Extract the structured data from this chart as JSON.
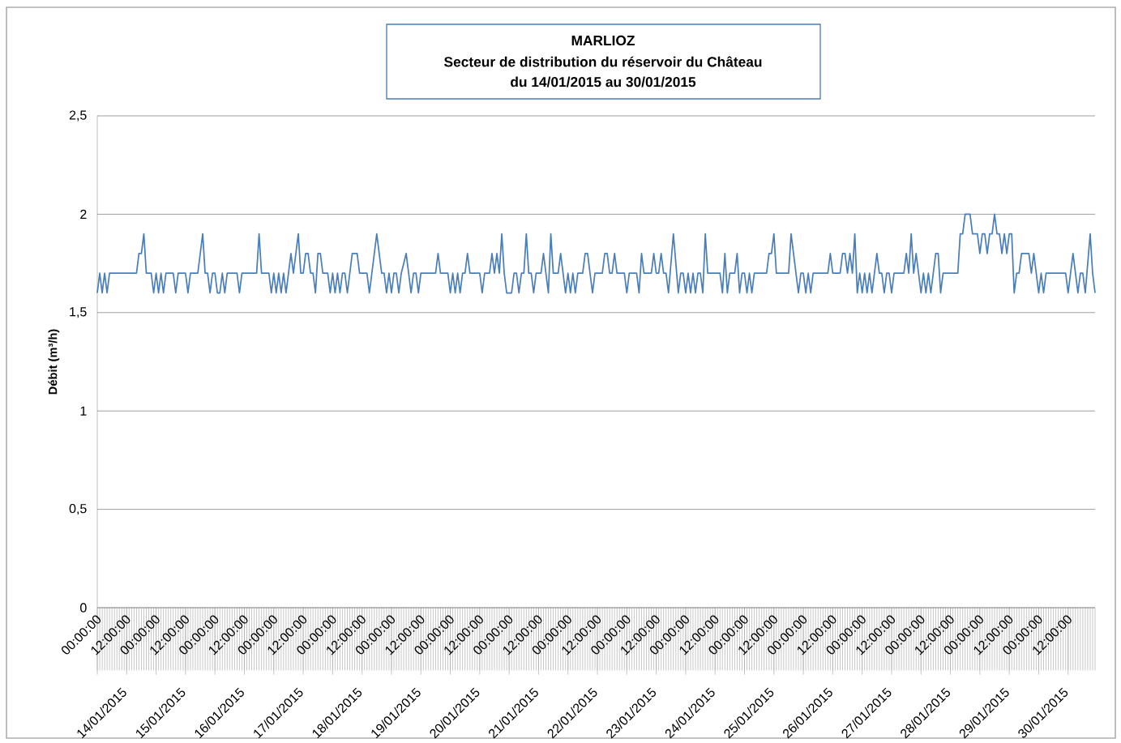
{
  "chart_data": {
    "type": "line",
    "title": "MARLIOZ",
    "subtitle": "Secteur de distribution du réservoir du Château",
    "ylabel": "Débit (m³/h)",
    "annotations": [
      "du 14/01/2015 au   30/01/2015",
      "14/01/2015",
      "15/01/2015",
      "16/01/2015",
      "17/01/2015",
      "18/01/2015",
      "19/01/2015",
      "20/01/2015",
      "21/01/2015",
      "22/01/2015",
      "23/01/2015",
      "24/01/2015",
      "25/01/2015",
      "26/01/2015",
      "27/01/2015",
      "28/01/2015",
      "29/01/2015",
      "30/01/2015"
    ],
    "xlim": [
      "2015-01-14T00:00",
      "2015-01-30T23:00"
    ],
    "ylim": [
      0,
      2.5
    ],
    "xticks": [
      {
        "value": "2015-01-14T00:00",
        "label": "00:00:00"
      },
      {
        "value": "2015-01-14T12:00",
        "label": "12:00:00"
      },
      {
        "value": "2015-01-15T00:00",
        "label": "00:00:00"
      },
      {
        "value": "2015-01-15T12:00",
        "label": "12:00:00"
      },
      {
        "value": "2015-01-16T00:00",
        "label": "00:00:00"
      },
      {
        "value": "2015-01-16T12:00",
        "label": "12:00:00"
      },
      {
        "value": "2015-01-17T00:00",
        "label": "00:00:00"
      },
      {
        "value": "2015-01-17T12:00",
        "label": "12:00:00"
      },
      {
        "value": "2015-01-18T00:00",
        "label": "00:00:00"
      },
      {
        "value": "2015-01-18T12:00",
        "label": "12:00:00"
      },
      {
        "value": "2015-01-19T00:00",
        "label": "00:00:00"
      },
      {
        "value": "2015-01-19T12:00",
        "label": "12:00:00"
      },
      {
        "value": "2015-01-20T00:00",
        "label": "00:00:00"
      },
      {
        "value": "2015-01-20T12:00",
        "label": "12:00:00"
      },
      {
        "value": "2015-01-21T00:00",
        "label": "00:00:00"
      },
      {
        "value": "2015-01-21T12:00",
        "label": "12:00:00"
      },
      {
        "value": "2015-01-22T00:00",
        "label": "00:00:00"
      },
      {
        "value": "2015-01-22T12:00",
        "label": "12:00:00"
      },
      {
        "value": "2015-01-23T00:00",
        "label": "00:00:00"
      },
      {
        "value": "2015-01-23T12:00",
        "label": "12:00:00"
      },
      {
        "value": "2015-01-24T00:00",
        "label": "00:00:00"
      },
      {
        "value": "2015-01-24T12:00",
        "label": "12:00:00"
      },
      {
        "value": "2015-01-25T00:00",
        "label": "00:00:00"
      },
      {
        "value": "2015-01-25T12:00",
        "label": "12:00:00"
      },
      {
        "value": "2015-01-26T00:00",
        "label": "00:00:00"
      },
      {
        "value": "2015-01-26T12:00",
        "label": "12:00:00"
      },
      {
        "value": "2015-01-27T00:00",
        "label": "00:00:00"
      },
      {
        "value": "2015-01-27T12:00",
        "label": "12:00:00"
      },
      {
        "value": "2015-01-28T00:00",
        "label": "00:00:00"
      },
      {
        "value": "2015-01-28T12:00",
        "label": "12:00:00"
      },
      {
        "value": "2015-01-29T00:00",
        "label": "00:00:00"
      },
      {
        "value": "2015-01-29T12:00",
        "label": "12:00:00"
      },
      {
        "value": "2015-01-30T00:00",
        "label": "00:00:00"
      },
      {
        "value": "2015-01-30T12:00",
        "label": "12:00:00"
      }
    ],
    "yticks": [
      {
        "value": 0,
        "label": "0"
      },
      {
        "value": 0.5,
        "label": "0,5"
      },
      {
        "value": 1,
        "label": "1"
      },
      {
        "value": 1.5,
        "label": "1,5"
      },
      {
        "value": 2,
        "label": "2"
      },
      {
        "value": 2.5,
        "label": "2,5"
      }
    ],
    "grid": "y",
    "marker": "none",
    "line_style": "solid",
    "series": [
      {
        "color": "#4a7ebb",
        "x": [
          "2015-01-14T00:00",
          "2015-01-14T01:00",
          "2015-01-14T02:00",
          "2015-01-14T03:00",
          "2015-01-14T04:00",
          "2015-01-14T05:00",
          "2015-01-14T16:00",
          "2015-01-14T17:00",
          "2015-01-14T18:00",
          "2015-01-14T19:00",
          "2015-01-14T20:00",
          "2015-01-14T22:00",
          "2015-01-14T23:00",
          "2015-01-15T00:00",
          "2015-01-15T01:00",
          "2015-01-15T02:00",
          "2015-01-15T03:00",
          "2015-01-15T04:00",
          "2015-01-15T07:00",
          "2015-01-15T08:00",
          "2015-01-15T09:00",
          "2015-01-15T12:00",
          "2015-01-15T13:00",
          "2015-01-15T14:00",
          "2015-01-15T17:00",
          "2015-01-15T19:00",
          "2015-01-15T20:00",
          "2015-01-15T21:00",
          "2015-01-15T22:00",
          "2015-01-15T23:00",
          "2015-01-16T00:00",
          "2015-01-16T01:00",
          "2015-01-16T02:00",
          "2015-01-16T03:00",
          "2015-01-16T04:00",
          "2015-01-16T05:00",
          "2015-01-16T09:00",
          "2015-01-16T10:00",
          "2015-01-16T11:00",
          "2015-01-16T17:00",
          "2015-01-16T18:00",
          "2015-01-16T19:00",
          "2015-01-16T22:00",
          "2015-01-16T23:00",
          "2015-01-17T00:00",
          "2015-01-17T01:00",
          "2015-01-17T02:00",
          "2015-01-17T03:00",
          "2015-01-17T04:00",
          "2015-01-17T05:00",
          "2015-01-17T06:00",
          "2015-01-17T07:00",
          "2015-01-17T08:00",
          "2015-01-17T10:00",
          "2015-01-17T11:00",
          "2015-01-17T12:00",
          "2015-01-17T13:00",
          "2015-01-17T14:00",
          "2015-01-17T15:00",
          "2015-01-17T16:00",
          "2015-01-17T17:00",
          "2015-01-17T18:00",
          "2015-01-17T19:00",
          "2015-01-17T20:00",
          "2015-01-17T22:00",
          "2015-01-17T23:00",
          "2015-01-18T00:00",
          "2015-01-18T01:00",
          "2015-01-18T02:00",
          "2015-01-18T03:00",
          "2015-01-18T04:00",
          "2015-01-18T05:00",
          "2015-01-18T06:00",
          "2015-01-18T07:00",
          "2015-01-18T08:00",
          "2015-01-18T10:00",
          "2015-01-18T11:00",
          "2015-01-18T14:00",
          "2015-01-18T15:00",
          "2015-01-18T18:00",
          "2015-01-18T20:00",
          "2015-01-18T21:00",
          "2015-01-18T22:00",
          "2015-01-18T23:00",
          "2015-01-19T00:00",
          "2015-01-19T01:00",
          "2015-01-19T02:00",
          "2015-01-19T03:00",
          "2015-01-19T04:00",
          "2015-01-19T06:00",
          "2015-01-19T08:00",
          "2015-01-19T09:00",
          "2015-01-19T10:00",
          "2015-01-19T11:00",
          "2015-01-19T12:00",
          "2015-01-19T18:00",
          "2015-01-19T19:00",
          "2015-01-19T20:00",
          "2015-01-19T23:00",
          "2015-01-20T00:00",
          "2015-01-20T01:00",
          "2015-01-20T02:00",
          "2015-01-20T03:00",
          "2015-01-20T04:00",
          "2015-01-20T05:00",
          "2015-01-20T06:00",
          "2015-01-20T07:00",
          "2015-01-20T08:00",
          "2015-01-20T12:00",
          "2015-01-20T13:00",
          "2015-01-20T14:00",
          "2015-01-20T16:00",
          "2015-01-20T17:00",
          "2015-01-20T18:00",
          "2015-01-20T19:00",
          "2015-01-20T20:00",
          "2015-01-20T21:00",
          "2015-01-20T22:00",
          "2015-01-20T23:00",
          "2015-01-21T01:00",
          "2015-01-21T02:00",
          "2015-01-21T03:00",
          "2015-01-21T04:00",
          "2015-01-21T05:00",
          "2015-01-21T06:00",
          "2015-01-21T07:00",
          "2015-01-21T08:00",
          "2015-01-21T09:00",
          "2015-01-21T10:00",
          "2015-01-21T11:00",
          "2015-01-21T13:00",
          "2015-01-21T14:00",
          "2015-01-21T15:00",
          "2015-01-21T16:00",
          "2015-01-21T17:00",
          "2015-01-21T18:00",
          "2015-01-21T20:00",
          "2015-01-21T21:00",
          "2015-01-21T22:00",
          "2015-01-21T23:00",
          "2015-01-22T00:00",
          "2015-01-22T01:00",
          "2015-01-22T02:00",
          "2015-01-22T03:00",
          "2015-01-22T04:00",
          "2015-01-22T06:00",
          "2015-01-22T07:00",
          "2015-01-22T08:00",
          "2015-01-22T09:00",
          "2015-01-22T10:00",
          "2015-01-22T11:00",
          "2015-01-22T14:00",
          "2015-01-22T15:00",
          "2015-01-22T16:00",
          "2015-01-22T17:00",
          "2015-01-22T18:00",
          "2015-01-22T19:00",
          "2015-01-22T20:00",
          "2015-01-22T23:00",
          "2015-01-23T00:00",
          "2015-01-23T01:00",
          "2015-01-23T04:00",
          "2015-01-23T05:00",
          "2015-01-23T06:00",
          "2015-01-23T07:00",
          "2015-01-23T10:00",
          "2015-01-23T11:00",
          "2015-01-23T12:00",
          "2015-01-23T13:00",
          "2015-01-23T14:00",
          "2015-01-23T15:00",
          "2015-01-23T16:00",
          "2015-01-23T17:00",
          "2015-01-23T19:00",
          "2015-01-23T21:00",
          "2015-01-23T22:00",
          "2015-01-23T23:00",
          "2015-01-24T00:00",
          "2015-01-24T01:00",
          "2015-01-24T02:00",
          "2015-01-24T03:00",
          "2015-01-24T04:00",
          "2015-01-24T05:00",
          "2015-01-24T06:00",
          "2015-01-24T07:00",
          "2015-01-24T08:00",
          "2015-01-24T09:00",
          "2015-01-24T14:00",
          "2015-01-24T15:00",
          "2015-01-24T16:00",
          "2015-01-24T17:00",
          "2015-01-24T18:00",
          "2015-01-24T20:00",
          "2015-01-24T21:00",
          "2015-01-24T22:00",
          "2015-01-24T23:00",
          "2015-01-25T00:00",
          "2015-01-25T01:00",
          "2015-01-25T02:00",
          "2015-01-25T03:00",
          "2015-01-25T04:00",
          "2015-01-25T09:00",
          "2015-01-25T10:00",
          "2015-01-25T11:00",
          "2015-01-25T12:00",
          "2015-01-25T13:00",
          "2015-01-25T18:00",
          "2015-01-25T19:00",
          "2015-01-25T22:00",
          "2015-01-25T23:00",
          "2015-01-26T00:00",
          "2015-01-26T01:00",
          "2015-01-26T02:00",
          "2015-01-26T03:00",
          "2015-01-26T04:00",
          "2015-01-26T10:00",
          "2015-01-26T11:00",
          "2015-01-26T12:00",
          "2015-01-26T15:00",
          "2015-01-26T16:00",
          "2015-01-26T17:00",
          "2015-01-26T18:00",
          "2015-01-26T19:00",
          "2015-01-26T20:00",
          "2015-01-26T21:00",
          "2015-01-26T22:00",
          "2015-01-26T23:00",
          "2015-01-27T00:00",
          "2015-01-27T01:00",
          "2015-01-27T02:00",
          "2015-01-27T03:00",
          "2015-01-27T04:00",
          "2015-01-27T05:00",
          "2015-01-27T06:00",
          "2015-01-27T07:00",
          "2015-01-27T08:00",
          "2015-01-27T09:00",
          "2015-01-27T10:00",
          "2015-01-27T11:00",
          "2015-01-27T12:00",
          "2015-01-27T13:00",
          "2015-01-27T17:00",
          "2015-01-27T18:00",
          "2015-01-27T19:00",
          "2015-01-27T20:00",
          "2015-01-27T21:00",
          "2015-01-27T22:00",
          "2015-01-27T23:00",
          "2015-01-28T00:00",
          "2015-01-28T01:00",
          "2015-01-28T02:00",
          "2015-01-28T03:00",
          "2015-01-28T04:00",
          "2015-01-28T05:00",
          "2015-01-28T06:00",
          "2015-01-28T07:00",
          "2015-01-28T08:00",
          "2015-01-28T09:00",
          "2015-01-28T15:00",
          "2015-01-28T16:00",
          "2015-01-28T17:00",
          "2015-01-28T18:00",
          "2015-01-28T20:00",
          "2015-01-28T21:00",
          "2015-01-28T23:00",
          "2015-01-29T00:00",
          "2015-01-29T01:00",
          "2015-01-29T02:00",
          "2015-01-29T03:00",
          "2015-01-29T04:00",
          "2015-01-29T05:00",
          "2015-01-29T06:00",
          "2015-01-29T07:00",
          "2015-01-29T08:00",
          "2015-01-29T09:00",
          "2015-01-29T10:00",
          "2015-01-29T11:00",
          "2015-01-29T12:00",
          "2015-01-29T13:00",
          "2015-01-29T14:00",
          "2015-01-29T15:00",
          "2015-01-29T16:00",
          "2015-01-29T17:00",
          "2015-01-29T20:00",
          "2015-01-29T21:00",
          "2015-01-29T22:00",
          "2015-01-29T23:00",
          "2015-01-30T00:00",
          "2015-01-30T01:00",
          "2015-01-30T02:00",
          "2015-01-30T03:00",
          "2015-01-30T11:00",
          "2015-01-30T12:00",
          "2015-01-30T14:00",
          "2015-01-30T16:00",
          "2015-01-30T17:00",
          "2015-01-30T18:00",
          "2015-01-30T19:00",
          "2015-01-30T21:00",
          "2015-01-30T22:00",
          "2015-01-30T23:00"
        ],
        "values": [
          1.6,
          1.7,
          1.6,
          1.7,
          1.6,
          1.7,
          1.7,
          1.8,
          1.8,
          1.9,
          1.7,
          1.7,
          1.6,
          1.7,
          1.6,
          1.7,
          1.6,
          1.7,
          1.7,
          1.6,
          1.7,
          1.7,
          1.6,
          1.7,
          1.7,
          1.9,
          1.7,
          1.7,
          1.6,
          1.7,
          1.7,
          1.6,
          1.6,
          1.7,
          1.6,
          1.7,
          1.7,
          1.6,
          1.7,
          1.7,
          1.9,
          1.7,
          1.7,
          1.6,
          1.7,
          1.6,
          1.7,
          1.6,
          1.7,
          1.6,
          1.7,
          1.8,
          1.7,
          1.9,
          1.7,
          1.7,
          1.8,
          1.8,
          1.7,
          1.7,
          1.6,
          1.8,
          1.8,
          1.7,
          1.7,
          1.6,
          1.7,
          1.6,
          1.7,
          1.6,
          1.7,
          1.7,
          1.6,
          1.7,
          1.8,
          1.8,
          1.7,
          1.7,
          1.6,
          1.9,
          1.7,
          1.7,
          1.6,
          1.7,
          1.6,
          1.7,
          1.7,
          1.6,
          1.7,
          1.8,
          1.6,
          1.7,
          1.7,
          1.6,
          1.7,
          1.7,
          1.8,
          1.7,
          1.7,
          1.6,
          1.7,
          1.6,
          1.7,
          1.6,
          1.7,
          1.7,
          1.8,
          1.7,
          1.7,
          1.6,
          1.7,
          1.7,
          1.8,
          1.7,
          1.8,
          1.7,
          1.9,
          1.7,
          1.6,
          1.6,
          1.7,
          1.7,
          1.6,
          1.7,
          1.7,
          1.9,
          1.7,
          1.7,
          1.6,
          1.7,
          1.7,
          1.8,
          1.7,
          1.6,
          1.9,
          1.7,
          1.7,
          1.8,
          1.7,
          1.6,
          1.7,
          1.6,
          1.7,
          1.6,
          1.7,
          1.7,
          1.8,
          1.8,
          1.7,
          1.6,
          1.7,
          1.7,
          1.8,
          1.8,
          1.7,
          1.7,
          1.8,
          1.7,
          1.7,
          1.6,
          1.7,
          1.7,
          1.6,
          1.8,
          1.7,
          1.7,
          1.8,
          1.7,
          1.7,
          1.8,
          1.7,
          1.7,
          1.6,
          1.9,
          1.6,
          1.7,
          1.7,
          1.6,
          1.7,
          1.6,
          1.7,
          1.6,
          1.7,
          1.7,
          1.6,
          1.9,
          1.7,
          1.7,
          1.6,
          1.8,
          1.6,
          1.7,
          1.7,
          1.8,
          1.6,
          1.7,
          1.7,
          1.6,
          1.7,
          1.6,
          1.7,
          1.7,
          1.8,
          1.8,
          1.9,
          1.7,
          1.7,
          1.9,
          1.6,
          1.7,
          1.7,
          1.6,
          1.7,
          1.6,
          1.7,
          1.7,
          1.8,
          1.7,
          1.7,
          1.8,
          1.8,
          1.7,
          1.8,
          1.7,
          1.9,
          1.6,
          1.7,
          1.6,
          1.7,
          1.6,
          1.7,
          1.6,
          1.7,
          1.8,
          1.7,
          1.7,
          1.6,
          1.7,
          1.7,
          1.6,
          1.7,
          1.7,
          1.8,
          1.7,
          1.9,
          1.7,
          1.8,
          1.7,
          1.6,
          1.7,
          1.6,
          1.7,
          1.6,
          1.7,
          1.8,
          1.8,
          1.6,
          1.7,
          1.7,
          1.9,
          1.9,
          2.0,
          2.0,
          1.9,
          1.9,
          1.8,
          1.9,
          1.9,
          1.8,
          1.9,
          1.9,
          2.0,
          1.9,
          1.9,
          1.8,
          1.9,
          1.8,
          1.9,
          1.9,
          1.6,
          1.7,
          1.7,
          1.8,
          1.8,
          1.7,
          1.8,
          1.7,
          1.6,
          1.7,
          1.6,
          1.7,
          1.7,
          1.6,
          1.8,
          1.6,
          1.7,
          1.7,
          1.6,
          1.9,
          1.7,
          1.6
        ]
      }
    ]
  }
}
